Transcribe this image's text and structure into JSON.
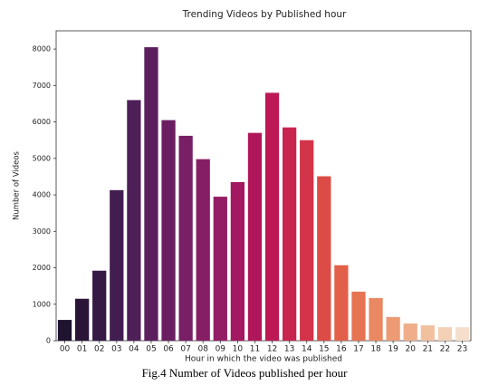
{
  "chart_data": {
    "type": "bar",
    "title": "Trending Videos by Published hour",
    "x_label": "Hour in which the video was published",
    "y_label": "Number of Videos",
    "caption": "Fig.4 Number of Videos published per hour",
    "categories": [
      "00",
      "01",
      "02",
      "03",
      "04",
      "05",
      "06",
      "07",
      "08",
      "09",
      "10",
      "11",
      "12",
      "13",
      "14",
      "15",
      "16",
      "17",
      "18",
      "19",
      "20",
      "21",
      "22",
      "23"
    ],
    "values": [
      570,
      1150,
      1920,
      4130,
      6600,
      8050,
      6050,
      5620,
      4980,
      3950,
      4350,
      5700,
      6800,
      5850,
      5500,
      4510,
      2070,
      1345,
      1170,
      650,
      470,
      420,
      370,
      370
    ],
    "colors": [
      "#1f1330",
      "#2a1539",
      "#361a45",
      "#421e50",
      "#4f1f58",
      "#5c1f5d",
      "#6a1f62",
      "#781f65",
      "#861e65",
      "#941c64",
      "#a21961",
      "#b0175b",
      "#bd1a55",
      "#c9244f",
      "#d33449",
      "#dc4b46",
      "#e26049",
      "#e67453",
      "#e98862",
      "#ec9b74",
      "#efae89",
      "#f1c09f",
      "#f3d0b6",
      "#f5dfcc"
    ],
    "ylim": [
      0,
      8500
    ],
    "yticks": [
      0,
      1000,
      2000,
      3000,
      4000,
      5000,
      6000,
      7000,
      8000
    ]
  }
}
